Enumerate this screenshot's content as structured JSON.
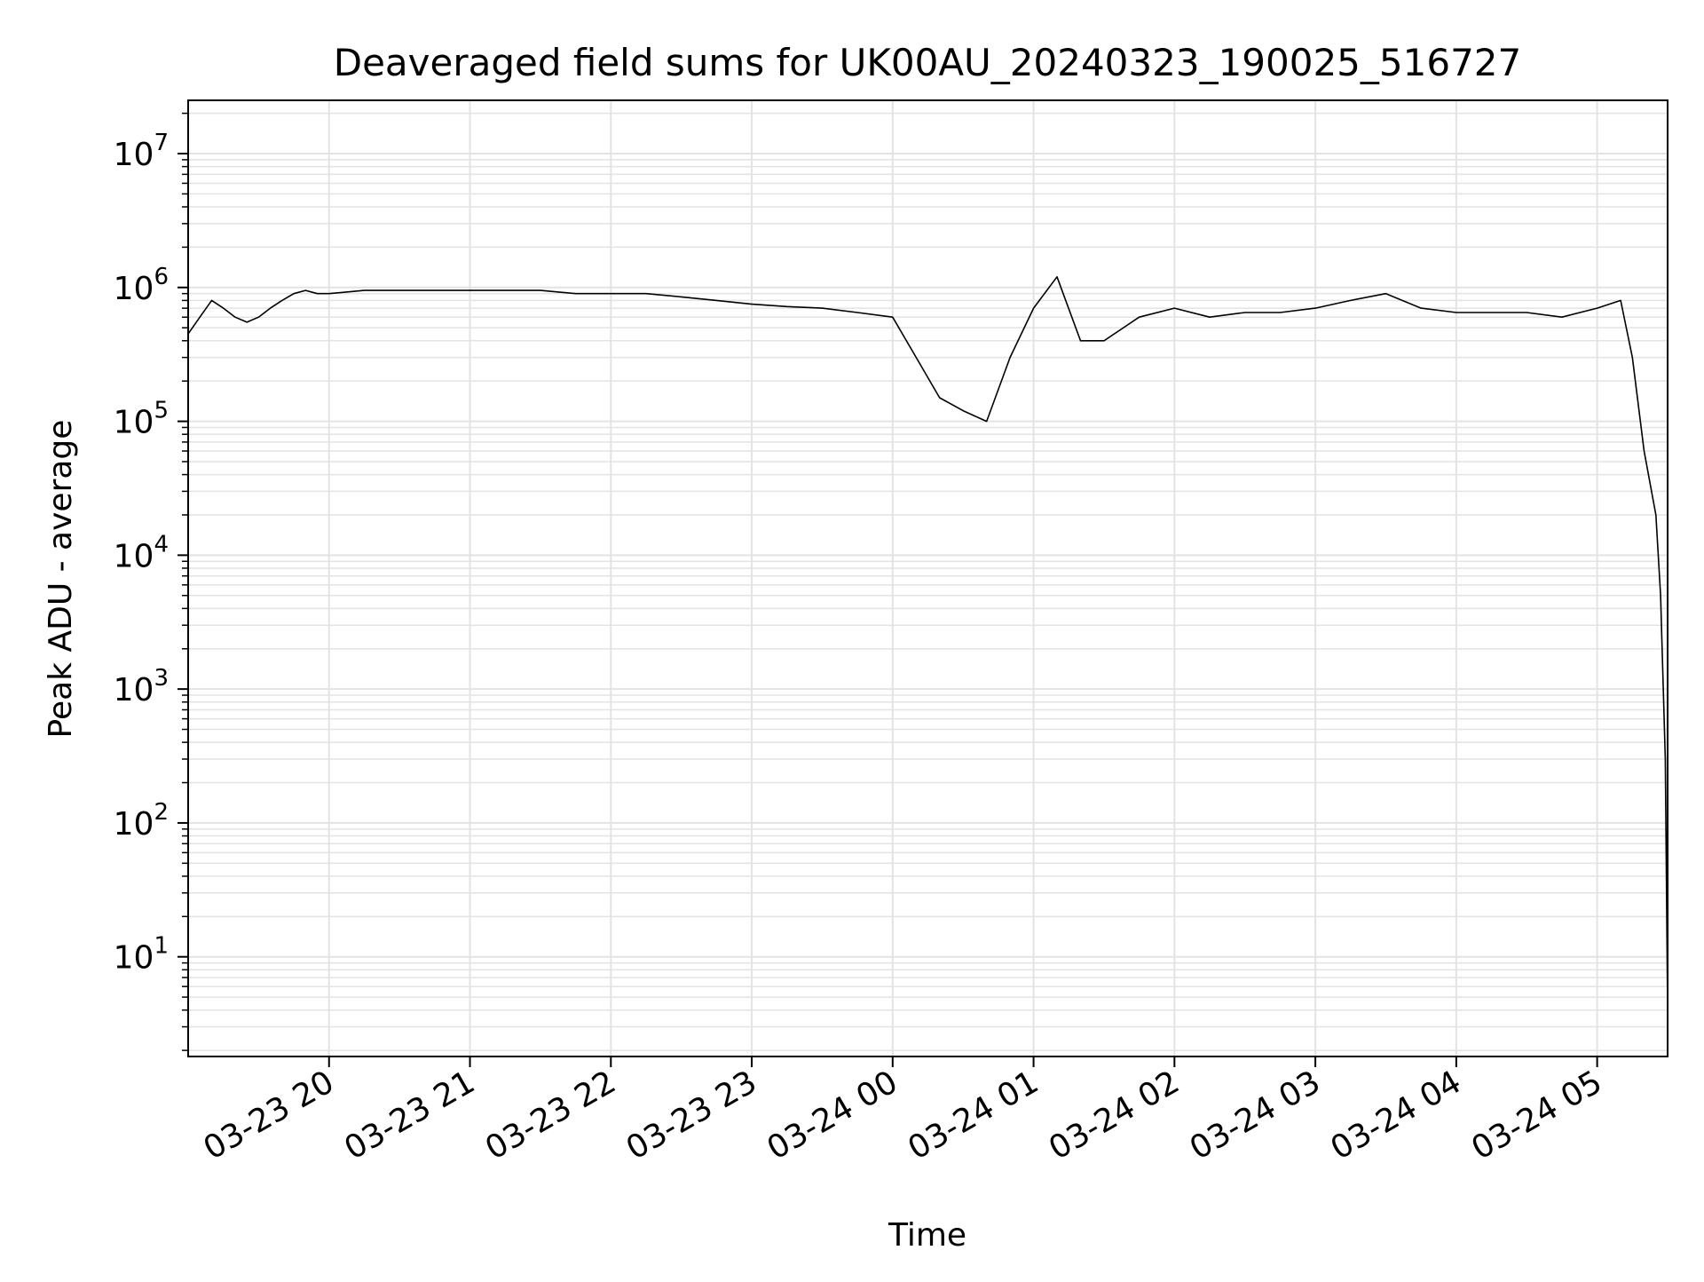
{
  "chart_data": {
    "type": "line",
    "title": "Deaveraged field sums for UK00AU_20240323_190025_516727",
    "xlabel": "Time",
    "ylabel": "Peak ADU - average",
    "yscale": "log",
    "ylim": [
      1.8,
      25000000
    ],
    "xlim": [
      "03-23 19:00",
      "03-24 05:30"
    ],
    "grid": true,
    "legend": "none",
    "line_color": "#000000",
    "grid_color": "#e3e3e3",
    "x_ticks": [
      "03-23 20",
      "03-23 21",
      "03-23 22",
      "03-23 23",
      "03-24 00",
      "03-24 01",
      "03-24 02",
      "03-24 03",
      "03-24 04",
      "03-24 05"
    ],
    "y_ticks": [
      {
        "value": 10,
        "base": "10",
        "exp": "1"
      },
      {
        "value": 100,
        "base": "10",
        "exp": "2"
      },
      {
        "value": 1000,
        "base": "10",
        "exp": "3"
      },
      {
        "value": 10000,
        "base": "10",
        "exp": "4"
      },
      {
        "value": 100000,
        "base": "10",
        "exp": "5"
      },
      {
        "value": 1000000,
        "base": "10",
        "exp": "6"
      },
      {
        "value": 10000000,
        "base": "10",
        "exp": "7"
      }
    ],
    "series": [
      {
        "x": [
          "03-23 19:00",
          "03-23 19:05",
          "03-23 19:10",
          "03-23 19:15",
          "03-23 19:20",
          "03-23 19:25",
          "03-23 19:30",
          "03-23 19:35",
          "03-23 19:40",
          "03-23 19:45",
          "03-23 19:50",
          "03-23 19:55",
          "03-23 20:00",
          "03-23 20:15",
          "03-23 20:30",
          "03-23 20:45",
          "03-23 21:00",
          "03-23 21:15",
          "03-23 21:30",
          "03-23 21:45",
          "03-23 22:00",
          "03-23 22:15",
          "03-23 22:30",
          "03-23 22:45",
          "03-23 23:00",
          "03-23 23:15",
          "03-23 23:30",
          "03-23 23:45",
          "03-24 00:00",
          "03-24 00:10",
          "03-24 00:20",
          "03-24 00:30",
          "03-24 00:40",
          "03-24 00:50",
          "03-24 01:00",
          "03-24 01:10",
          "03-24 01:20",
          "03-24 01:30",
          "03-24 01:45",
          "03-24 02:00",
          "03-24 02:15",
          "03-24 02:30",
          "03-24 02:45",
          "03-24 03:00",
          "03-24 03:15",
          "03-24 03:30",
          "03-24 03:45",
          "03-24 04:00",
          "03-24 04:15",
          "03-24 04:30",
          "03-24 04:45",
          "03-24 05:00",
          "03-24 05:10",
          "03-24 05:15",
          "03-24 05:20",
          "03-24 05:25",
          "03-24 05:27",
          "03-24 05:29",
          "03-24 05:30"
        ],
        "y": [
          450000,
          600000,
          800000,
          700000,
          600000,
          550000,
          600000,
          700000,
          800000,
          900000,
          950000,
          900000,
          900000,
          950000,
          950000,
          950000,
          950000,
          950000,
          950000,
          900000,
          900000,
          900000,
          850000,
          800000,
          750000,
          720000,
          700000,
          650000,
          600000,
          300000,
          150000,
          120000,
          100000,
          300000,
          700000,
          1200000,
          400000,
          400000,
          600000,
          700000,
          600000,
          650000,
          650000,
          700000,
          800000,
          900000,
          700000,
          650000,
          650000,
          650000,
          600000,
          700000,
          800000,
          300000,
          60000,
          20000,
          5000,
          300,
          4
        ]
      }
    ]
  }
}
